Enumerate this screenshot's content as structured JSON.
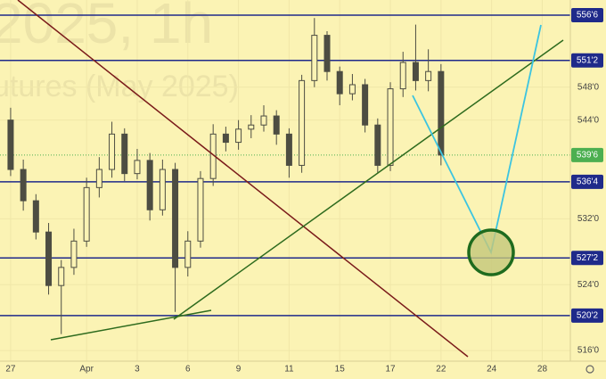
{
  "watermark": [
    "2025, 1h",
    "utures (May 2025)"
  ],
  "chart_data": {
    "type": "candlestick",
    "series": [
      {
        "color": "#4d4d42",
        "x": [
          0,
          0.5,
          1,
          1.5,
          2,
          2.5,
          3,
          3.5,
          4,
          4.5,
          5,
          5.5,
          6,
          6.5,
          7,
          7.5,
          8,
          8.5,
          9,
          9.5,
          10,
          10.5,
          11,
          11.5,
          12,
          12.5,
          13,
          13.5,
          14,
          14.5,
          15,
          15.5,
          16,
          16.5,
          17
        ],
        "open": [
          544.0,
          538.0,
          534.2,
          530.4,
          523.9,
          526.1,
          529.3,
          535.8,
          538.0,
          542.3,
          537.5,
          539.1,
          533.1,
          538.0,
          526.1,
          529.3,
          536.9,
          542.3,
          541.3,
          542.9,
          543.4,
          544.5,
          542.3,
          538.5,
          548.8,
          554.3,
          549.9,
          547.2,
          548.3,
          543.4,
          538.5,
          547.8,
          551.0,
          548.8,
          549.9
        ],
        "high": [
          545.5,
          539.2,
          535.0,
          531.5,
          527.0,
          530.8,
          537.0,
          539.5,
          543.8,
          543.0,
          540.5,
          540.0,
          539.2,
          538.8,
          530.5,
          537.8,
          543.5,
          543.2,
          544.0,
          544.6,
          545.8,
          545.2,
          543.0,
          549.5,
          556.4,
          554.8,
          550.5,
          549.6,
          549.0,
          544.2,
          548.6,
          552.3,
          555.6,
          552.6,
          550.8
        ],
        "low": [
          537.2,
          533.0,
          529.5,
          522.8,
          518.0,
          525.2,
          528.6,
          534.6,
          537.0,
          536.6,
          536.8,
          531.8,
          532.4,
          520.7,
          525.0,
          528.5,
          536.0,
          540.2,
          540.4,
          541.8,
          542.6,
          541.0,
          537.0,
          537.6,
          548.0,
          548.8,
          545.8,
          546.4,
          542.5,
          537.6,
          537.8,
          546.8,
          547.6,
          547.5,
          538.5
        ],
        "close": [
          538.0,
          534.2,
          530.4,
          523.9,
          526.1,
          529.3,
          535.8,
          538.0,
          542.3,
          537.5,
          539.1,
          533.1,
          538.0,
          526.1,
          529.3,
          536.9,
          542.3,
          541.3,
          542.9,
          543.4,
          544.5,
          542.3,
          538.5,
          548.8,
          554.3,
          549.9,
          547.2,
          548.3,
          543.4,
          538.5,
          547.8,
          551.0,
          548.8,
          549.9,
          539.75
        ]
      }
    ],
    "xlim": [
      -0.42,
      22.11
    ],
    "xticks": [
      {
        "value": 0,
        "label": "27"
      },
      {
        "value": 3,
        "label": "Apr"
      },
      {
        "value": 5,
        "label": "3"
      },
      {
        "value": 7,
        "label": "6"
      },
      {
        "value": 9,
        "label": "9"
      },
      {
        "value": 11,
        "label": "11"
      },
      {
        "value": 13,
        "label": "15"
      },
      {
        "value": 15,
        "label": "17"
      },
      {
        "value": 17,
        "label": "22"
      },
      {
        "value": 19,
        "label": "24"
      },
      {
        "value": 21,
        "label": "28"
      }
    ],
    "ylim": [
      514.71,
      558.59
    ],
    "yticks": [
      {
        "value": 516,
        "label": "516'0"
      },
      {
        "value": 524,
        "label": "524'0"
      },
      {
        "value": 532,
        "label": "532'0"
      },
      {
        "value": 544,
        "label": "544'0"
      },
      {
        "value": 548,
        "label": "548'0"
      }
    ],
    "levels": [
      {
        "value": 556.75,
        "label": "556'6"
      },
      {
        "value": 551.25,
        "label": "551'2"
      },
      {
        "value": 536.5,
        "label": "536'4"
      },
      {
        "value": 527.25,
        "label": "527'2"
      },
      {
        "value": 520.25,
        "label": "520'2"
      }
    ],
    "level_color": "#1f2a8a",
    "last_price": {
      "value": 539.75,
      "label": "539'6"
    },
    "last_price_color": "#4caf50"
  }
}
